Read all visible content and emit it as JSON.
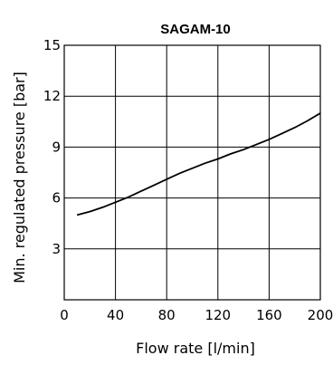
{
  "chart_data": {
    "type": "line",
    "title": "SAGAM-10",
    "xlabel": "Flow rate [l/min]",
    "ylabel": "Min. regulated pressure [bar]",
    "xlim": [
      0,
      200
    ],
    "ylim": [
      0,
      15
    ],
    "xticks": [
      0,
      40,
      80,
      120,
      160,
      200
    ],
    "yticks": [
      3,
      6,
      9,
      12,
      15
    ],
    "grid": true,
    "series": [
      {
        "x": [
          10,
          20,
          30,
          40,
          50,
          60,
          70,
          80,
          90,
          100,
          110,
          120,
          130,
          140,
          150,
          160,
          170,
          180,
          190,
          200
        ],
        "y": [
          5.0,
          5.2,
          5.45,
          5.75,
          6.05,
          6.4,
          6.75,
          7.1,
          7.45,
          7.75,
          8.05,
          8.3,
          8.6,
          8.85,
          9.15,
          9.45,
          9.8,
          10.15,
          10.55,
          11.0
        ]
      }
    ]
  }
}
